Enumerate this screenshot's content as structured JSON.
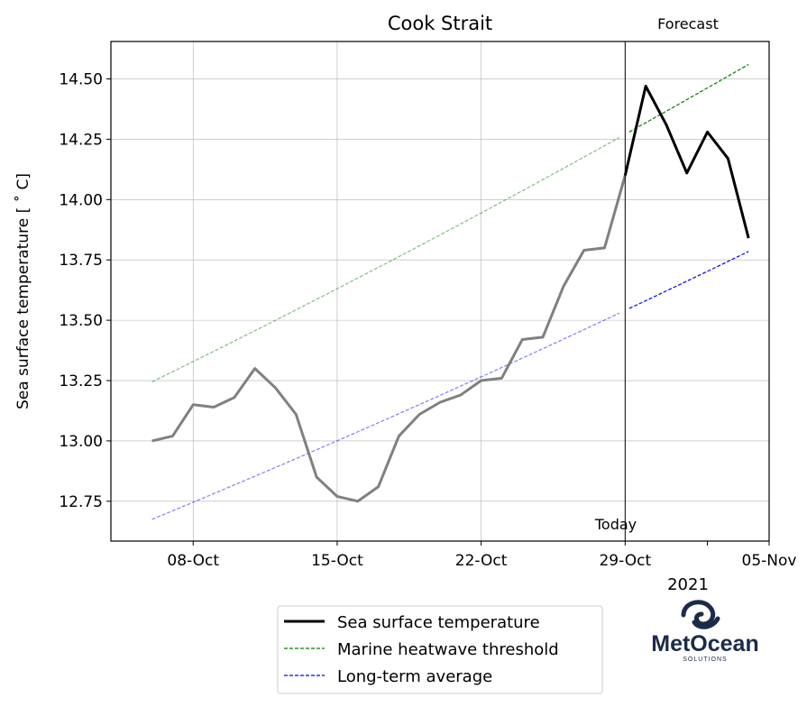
{
  "chart_data": {
    "type": "line",
    "title": "Cook Strait",
    "ylabel": "Sea surface temperature [$^\\circ$C]",
    "ylabel_display": "Sea surface temperature [ ˚ C]",
    "xlabel": "",
    "year_label": "2021",
    "ylim": [
      12.585,
      14.655
    ],
    "xlim": [
      "2021-10-04",
      "2021-11-05"
    ],
    "x_ticks": [
      "08-Oct",
      "15-Oct",
      "22-Oct",
      "29-Oct",
      "05-Nov"
    ],
    "x_tick_dates": [
      "2021-10-08",
      "2021-10-15",
      "2021-10-22",
      "2021-10-29",
      "2021-11-05"
    ],
    "x_minor_tick_dates": [
      "2021-11-02"
    ],
    "y_ticks": [
      "12.75",
      "13.00",
      "13.25",
      "13.50",
      "13.75",
      "14.00",
      "14.25",
      "14.50"
    ],
    "y_tick_values": [
      12.75,
      13.0,
      13.25,
      13.5,
      13.75,
      14.0,
      14.25,
      14.5
    ],
    "grid": true,
    "today_date": "2021-10-29",
    "today_label": "Today",
    "forecast_label": "Forecast",
    "colors": {
      "observed": "#808080",
      "forecast": "#000000",
      "threshold": "#008000",
      "average": "#0000ff"
    },
    "legend": {
      "position": "below",
      "entries": [
        "Sea surface temperature",
        "Marine heatwave threshold",
        "Long-term average"
      ]
    },
    "series": [
      {
        "name": "Sea surface temperature",
        "style": "solid",
        "x": [
          "2021-10-06",
          "2021-10-07",
          "2021-10-08",
          "2021-10-09",
          "2021-10-10",
          "2021-10-11",
          "2021-10-12",
          "2021-10-13",
          "2021-10-14",
          "2021-10-15",
          "2021-10-16",
          "2021-10-17",
          "2021-10-18",
          "2021-10-19",
          "2021-10-20",
          "2021-10-21",
          "2021-10-22",
          "2021-10-23",
          "2021-10-24",
          "2021-10-25",
          "2021-10-26",
          "2021-10-27",
          "2021-10-28",
          "2021-10-29",
          "2021-10-30",
          "2021-10-31",
          "2021-11-01",
          "2021-11-02",
          "2021-11-03",
          "2021-11-04"
        ],
        "values": [
          13.0,
          13.02,
          13.15,
          13.14,
          13.18,
          13.3,
          13.22,
          13.11,
          12.85,
          12.77,
          12.75,
          12.81,
          13.02,
          13.11,
          13.16,
          13.19,
          13.25,
          13.26,
          13.42,
          13.43,
          13.64,
          13.79,
          13.8,
          14.1,
          14.47,
          14.31,
          14.11,
          14.28,
          14.17,
          13.84
        ]
      },
      {
        "name": "Marine heatwave threshold",
        "style": "dashed",
        "x": [
          "2021-10-06",
          "2021-11-04"
        ],
        "values": [
          13.245,
          14.56
        ],
        "curvature": 0.08
      },
      {
        "name": "Long-term average",
        "style": "dashed",
        "x": [
          "2021-10-06",
          "2021-11-04"
        ],
        "values": [
          12.675,
          13.785
        ],
        "curvature": 0.08
      }
    ]
  },
  "logo": {
    "name": "MetOcean",
    "subtitle": "SOLUTIONS",
    "color": "#1b2b4a"
  }
}
